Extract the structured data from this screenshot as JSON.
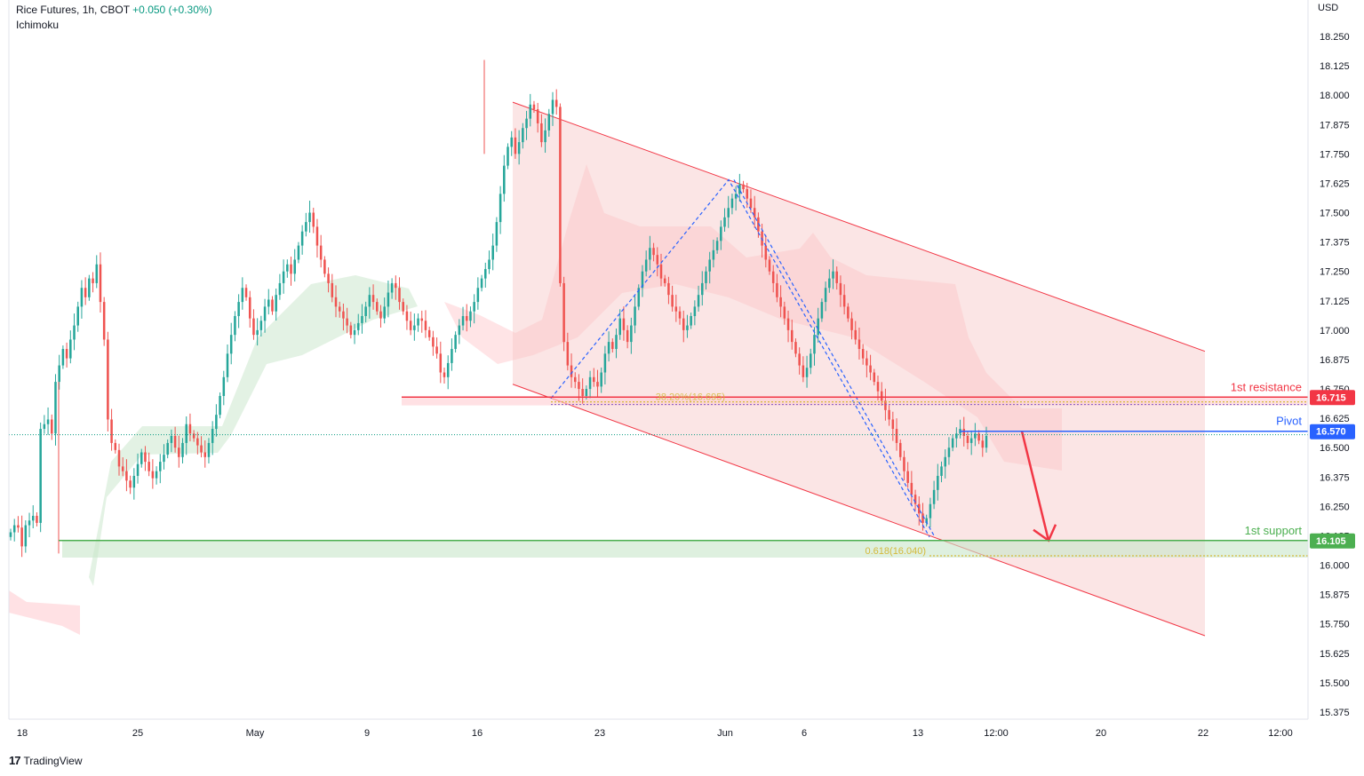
{
  "header": {
    "symbol": "Rice Futures, 1h, CBOT",
    "change": "+0.050 (+0.30%)",
    "indicator": "Ichimoku"
  },
  "currency": "USD",
  "brand": {
    "logo_icon": "tradingview-logo-icon",
    "name": "TradingView"
  },
  "colors": {
    "up": "#26a69a",
    "down": "#ef5350",
    "resistance": "#f23645",
    "pivot": "#2962ff",
    "support": "#4caf50",
    "fib": "#d4b93a",
    "channel_fill": "#f7c6c6",
    "cloud_bull": "#c8e6c9",
    "cloud_bear": "#ffcdd2"
  },
  "chart_data": {
    "type": "candlestick",
    "y_ticks": [
      "18.250",
      "18.125",
      "18.000",
      "17.875",
      "17.750",
      "17.625",
      "17.500",
      "17.375",
      "17.250",
      "17.125",
      "17.000",
      "16.875",
      "16.750",
      "16.625",
      "16.500",
      "16.375",
      "16.250",
      "16.125",
      "16.000",
      "15.875",
      "15.750",
      "15.625",
      "15.500",
      "15.375"
    ],
    "ylim": [
      15.33,
      18.38
    ],
    "x_ticks": [
      "18",
      "25",
      "May",
      "9",
      "16",
      "23",
      "Jun",
      "6",
      "13",
      "12:00",
      "20",
      "22",
      "12:00"
    ],
    "levels": [
      {
        "label": "1st resistance",
        "price": "16.715",
        "value": 16.715
      },
      {
        "label": "Pivot",
        "price": "16.570",
        "value": 16.57
      },
      {
        "label": "1st support",
        "price": "16.105",
        "value": 16.105
      }
    ],
    "fib_labels": [
      {
        "label": "38.20%(16.695)",
        "value": 16.695
      },
      {
        "label": "0.618(16.040)",
        "value": 16.04
      }
    ],
    "last_price": 16.555,
    "channel": {
      "upper": [
        [
          19.6,
          17.97
        ],
        [
          32.0,
          16.91
        ]
      ],
      "lower": [
        [
          19.6,
          16.77
        ],
        [
          32.0,
          15.7
        ]
      ]
    },
    "candles_close": [
      16.14,
      16.17,
      16.16,
      16.08,
      16.17,
      16.19,
      16.21,
      16.18,
      16.58,
      16.6,
      16.62,
      16.56,
      16.78,
      16.85,
      16.92,
      16.88,
      16.96,
      17.02,
      17.1,
      17.18,
      17.14,
      17.22,
      17.2,
      17.28,
      17.12,
      16.96,
      16.62,
      16.52,
      16.49,
      16.42,
      16.4,
      16.36,
      16.33,
      16.38,
      16.43,
      16.48,
      16.44,
      16.4,
      16.37,
      16.4,
      16.44,
      16.47,
      16.52,
      16.55,
      16.5,
      16.46,
      16.52,
      16.6,
      16.56,
      16.54,
      16.51,
      16.48,
      16.46,
      16.52,
      16.58,
      16.64,
      16.72,
      16.8,
      16.9,
      16.98,
      17.06,
      17.12,
      17.18,
      17.14,
      17.05,
      16.98,
      17.0,
      17.04,
      17.1,
      17.13,
      17.08,
      17.15,
      17.2,
      17.25,
      17.28,
      17.24,
      17.3,
      17.36,
      17.42,
      17.46,
      17.5,
      17.44,
      17.36,
      17.3,
      17.24,
      17.2,
      17.14,
      17.1,
      17.08,
      17.05,
      17.02,
      16.98,
      17.0,
      17.03,
      17.06,
      17.1,
      17.15,
      17.12,
      17.08,
      17.05,
      17.1,
      17.16,
      17.2,
      17.18,
      17.12,
      17.08,
      17.04,
      17.0,
      17.02,
      17.05,
      17.04,
      17.0,
      16.97,
      16.93,
      16.9,
      16.82,
      16.8,
      16.86,
      16.92,
      16.98,
      17.02,
      17.06,
      17.04,
      17.08,
      17.12,
      17.18,
      17.22,
      17.26,
      17.3,
      17.36,
      17.46,
      17.58,
      17.7,
      17.78,
      17.82,
      17.75,
      17.8,
      17.86,
      17.9,
      17.96,
      17.94,
      17.88,
      17.8,
      17.85,
      17.92,
      17.98,
      17.95,
      17.2,
      16.95,
      16.85,
      16.8,
      16.78,
      16.75,
      16.72,
      16.75,
      16.8,
      16.78,
      16.76,
      16.82,
      16.9,
      16.95,
      16.92,
      16.98,
      17.05,
      17.0,
      16.95,
      17.02,
      17.1,
      17.18,
      17.25,
      17.3,
      17.35,
      17.32,
      17.28,
      17.22,
      17.2,
      17.15,
      17.1,
      17.08,
      17.05,
      17.0,
      17.02,
      17.06,
      17.1,
      17.15,
      17.2,
      17.25,
      17.3,
      17.34,
      17.38,
      17.44,
      17.48,
      17.52,
      17.56,
      17.58,
      17.62,
      17.6,
      17.56,
      17.52,
      17.48,
      17.42,
      17.36,
      17.3,
      17.25,
      17.2,
      17.14,
      17.1,
      17.05,
      17.0,
      16.95,
      16.9,
      16.85,
      16.8,
      16.84,
      16.9,
      16.98,
      17.05,
      17.12,
      17.18,
      17.22,
      17.25,
      17.2,
      17.15,
      17.1,
      17.05,
      17.0,
      16.96,
      16.92,
      16.88,
      16.85,
      16.82,
      16.78,
      16.74,
      16.7,
      16.66,
      16.62,
      16.58,
      16.52,
      16.46,
      16.4,
      16.35,
      16.3,
      16.26,
      16.22,
      16.18,
      16.2,
      16.26,
      16.32,
      16.38,
      16.42,
      16.46,
      16.5,
      16.54,
      16.56,
      16.58,
      16.55,
      16.52,
      16.54,
      16.56,
      16.53,
      16.5,
      16.55
    ]
  }
}
